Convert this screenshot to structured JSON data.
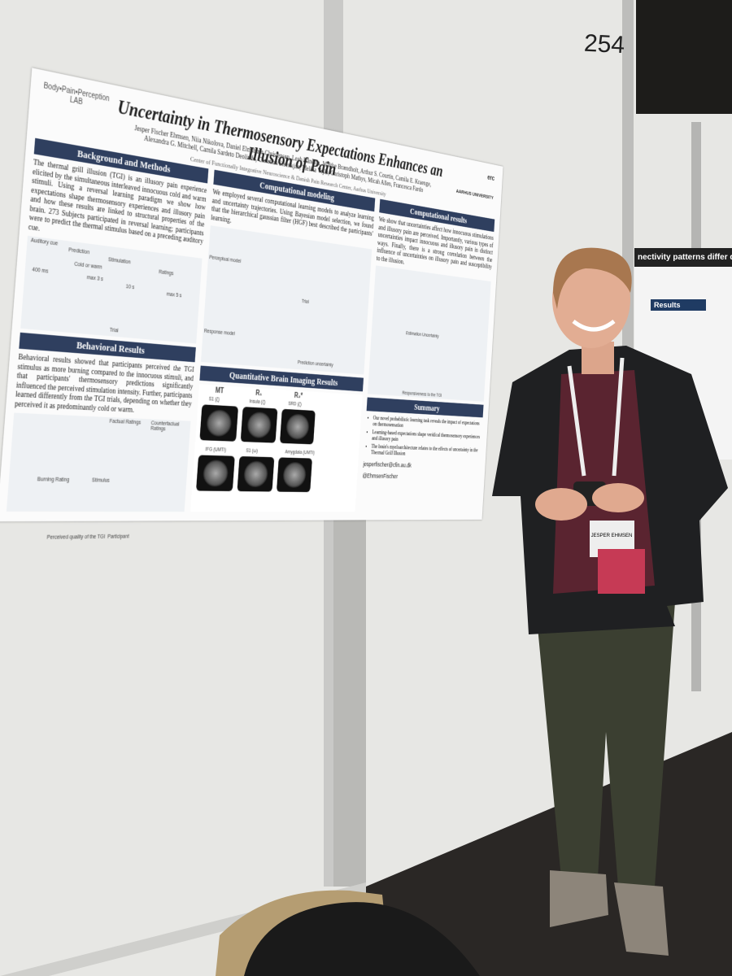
{
  "board_number": "254",
  "neighbor_poster": {
    "title": "nectivity patterns differ during pain, neg",
    "section": "Results"
  },
  "badge_name": "JESPER EHMSEN",
  "poster": {
    "lab_name": "Body•Pain•Perception",
    "lab_suffix": "LAB",
    "title": "Uncertainty in Thermosensory Expectations Enhances an Illusion of Pain",
    "authors": "Jesper Fischer Ehmsen, Niia Nikolova, Daniel Elmstrøm Christensen, Leah Banellis, Malthe Brændholt, Arthur S. Courtin, Camila E. Kraenge, Alexandra G. Mitchell, Camila Sardeto Deolindo, Christian Steenkjær, Melina Vejlø, Christoph Mathys, Micah Allen, Francesca Fardo",
    "affiliation": "Center of Functionally Integrative Neuroscience & Danish Pain Research Center, Aarhus University",
    "logos": [
      "erc",
      "AARHUS UNIVERSITY"
    ],
    "background": {
      "heading": "Background and Methods",
      "text": "The thermal grill illusion (TGI) is an illusory pain experience elicited by the simultaneous interleaved innocuous cold and warm stimuli. Using a reversal learning paradigm we show how expectations shape thermosensory experiences and illusory pain and how these results are linked to structural properties of the brain. 273 Subjects participated in reversal learning; participants were to predict the thermal stimulus based on a preceding auditory cue.",
      "figure_labels": [
        "Auditory cue",
        "Prediction",
        "Stimulation",
        "Ratings",
        "400 ms",
        "max 3 s",
        "10 s",
        "max 5 s",
        "Cold or warm",
        "Trial"
      ]
    },
    "behavioral": {
      "heading": "Behavioral Results",
      "text": "Behavioral results showed that participants perceived the TGI stimulus as more burning compared to the innocuous stimuli, and that participants' thermosensory predictions significantly influenced the perceived stimulation intensity. Further, participants learned differently from the TGI trials, depending on whether they perceived it as predominantly cold or warm.",
      "figure_labels": [
        "Factual Ratings",
        "Counterfactual Ratings",
        "Burning Rating",
        "Stimulus",
        "Perceived quality of the TGI",
        "Participant"
      ]
    },
    "modeling": {
      "heading": "Computational modeling",
      "text": "We employed several computational learning models to analyze learning and uncertainty trajectories. Using Bayesian model selection, we found that the hierarchical gaussian filter (HGF) best described the participants' learning.",
      "figure_labels": [
        "Perceptual model",
        "Response model",
        "Trial",
        "Prediction uncertainty"
      ]
    },
    "results": {
      "heading": "Computational results",
      "text": "We show that uncertainties affect how innocuous stimulations and illusory pain are perceived. Importantly, various types of uncertainties impact innocuous and illusory pain in distinct ways. Finally, there is a strong correlation between the influence of uncertainties on illusory pain and susceptibility to the illusion.",
      "figure_labels": [
        "Estimation Uncertainty",
        "Responsiveness to the TGI"
      ]
    },
    "imaging": {
      "heading": "Quantitative Brain Imaging Results",
      "columns": [
        "MT",
        "R₁",
        "R₂*"
      ],
      "regions": [
        "S1 (ζ)",
        "Insula (ζ)",
        "SRD (ζ)",
        "IFG (UMTI)",
        "S1 (ω)",
        "Amygdala (UMTI)"
      ]
    },
    "summary": {
      "heading": "Summary",
      "bullets": [
        "Our novel probabilistic learning task reveals the impact of expectations on thermosensation",
        "Learning-based expectations shape veridical thermosensory experiences and illusory pain",
        "The brain's myeloarchitecture relates to the effects of uncertainty in the Thermal Grill Illusion"
      ],
      "email": "jesperfischer@cfin.au.dk",
      "handle": "@EhmsenFischer"
    }
  }
}
